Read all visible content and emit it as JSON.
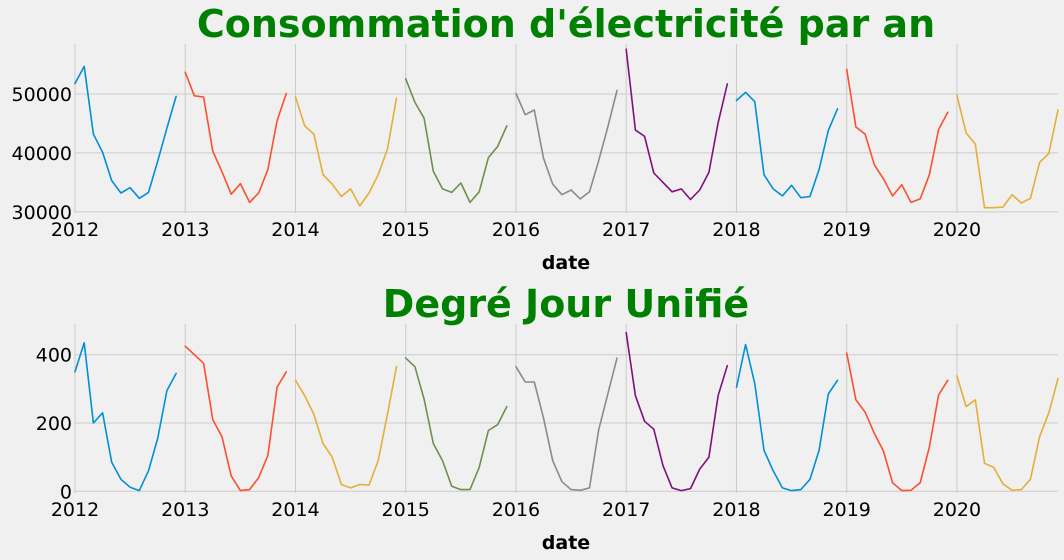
{
  "chart_data": [
    {
      "type": "line",
      "title": "Consommation d'électricité par an",
      "xlabel": "date",
      "ylabel": "",
      "x_ticks": [
        "2012",
        "2013",
        "2014",
        "2015",
        "2016",
        "2017",
        "2018",
        "2019",
        "2020"
      ],
      "y_ticks": [
        30000,
        40000,
        50000
      ],
      "ylim": [
        29800,
        58500
      ],
      "x_range": [
        "2012-01",
        "2020-12"
      ],
      "grid": true,
      "colors": [
        "#008fd5",
        "#fc4f30",
        "#e5ae38",
        "#6d904f",
        "#8b8b8b",
        "#810f7c"
      ],
      "series": [
        {
          "year": 2012,
          "color": "#008fd5",
          "values": [
            51800,
            54700,
            43200,
            40100,
            35300,
            33200,
            34100,
            32300,
            33300,
            38600,
            44200,
            49600
          ]
        },
        {
          "year": 2013,
          "color": "#fc4f30",
          "values": [
            53700,
            49700,
            49500,
            40300,
            36800,
            33000,
            34800,
            31600,
            33200,
            37200,
            45500,
            50100
          ]
        },
        {
          "year": 2014,
          "color": "#e5ae38",
          "values": [
            49500,
            44600,
            43200,
            36300,
            34700,
            32600,
            33900,
            31000,
            33200,
            36300,
            40600,
            49300
          ]
        },
        {
          "year": 2015,
          "color": "#6d904f",
          "values": [
            52600,
            48600,
            45900,
            36900,
            33900,
            33300,
            34900,
            31600,
            33400,
            39200,
            41100,
            44600
          ]
        },
        {
          "year": 2016,
          "color": "#8b8b8b",
          "values": [
            50100,
            46500,
            47300,
            39100,
            34700,
            32900,
            33700,
            32200,
            33400,
            38700,
            44400,
            50600
          ]
        },
        {
          "year": 2017,
          "color": "#810f7c",
          "values": [
            57600,
            43900,
            42800,
            36600,
            35000,
            33400,
            33900,
            32100,
            33700,
            36700,
            45100,
            51700
          ]
        },
        {
          "year": 2018,
          "color": "#008fd5",
          "values": [
            48900,
            50300,
            48700,
            36300,
            33900,
            32700,
            34500,
            32400,
            32600,
            37200,
            43800,
            47500
          ]
        },
        {
          "year": 2019,
          "color": "#fc4f30",
          "values": [
            54200,
            44400,
            43200,
            38000,
            35600,
            32700,
            34600,
            31600,
            32200,
            36300,
            44000,
            46900
          ]
        },
        {
          "year": 2020,
          "color": "#e5ae38",
          "values": [
            49800,
            43400,
            41500,
            30700,
            30700,
            30800,
            32900,
            31500,
            32300,
            38400,
            39900,
            47300
          ]
        }
      ]
    },
    {
      "type": "line",
      "title": "Degré Jour Unifié",
      "xlabel": "date",
      "ylabel": "",
      "x_ticks": [
        "2012",
        "2013",
        "2014",
        "2015",
        "2016",
        "2017",
        "2018",
        "2019",
        "2020"
      ],
      "y_ticks": [
        0,
        200,
        400
      ],
      "ylim": [
        -5,
        490
      ],
      "x_range": [
        "2012-01",
        "2020-12"
      ],
      "grid": true,
      "colors": [
        "#008fd5",
        "#fc4f30",
        "#e5ae38",
        "#6d904f",
        "#8b8b8b",
        "#810f7c"
      ],
      "series": [
        {
          "year": 2012,
          "color": "#008fd5",
          "values": [
            350,
            435,
            200,
            230,
            85,
            35,
            12,
            2,
            60,
            155,
            295,
            345
          ]
        },
        {
          "year": 2013,
          "color": "#fc4f30",
          "values": [
            425,
            400,
            375,
            210,
            160,
            45,
            2,
            5,
            40,
            105,
            305,
            350
          ]
        },
        {
          "year": 2014,
          "color": "#e5ae38",
          "values": [
            325,
            280,
            225,
            140,
            100,
            20,
            10,
            20,
            18,
            90,
            225,
            365
          ]
        },
        {
          "year": 2015,
          "color": "#6d904f",
          "values": [
            390,
            365,
            270,
            140,
            90,
            15,
            5,
            5,
            70,
            178,
            195,
            248
          ]
        },
        {
          "year": 2016,
          "color": "#8b8b8b",
          "values": [
            365,
            320,
            320,
            215,
            90,
            28,
            5,
            3,
            10,
            180,
            285,
            390
          ]
        },
        {
          "year": 2017,
          "color": "#810f7c",
          "values": [
            465,
            280,
            205,
            182,
            75,
            10,
            2,
            8,
            65,
            100,
            280,
            368
          ]
        },
        {
          "year": 2018,
          "color": "#008fd5",
          "values": [
            305,
            430,
            315,
            120,
            60,
            10,
            2,
            5,
            35,
            120,
            285,
            325
          ]
        },
        {
          "year": 2019,
          "color": "#fc4f30",
          "values": [
            405,
            268,
            232,
            170,
            118,
            25,
            2,
            3,
            25,
            130,
            282,
            325
          ]
        },
        {
          "year": 2020,
          "color": "#e5ae38",
          "values": [
            338,
            248,
            268,
            82,
            70,
            22,
            3,
            5,
            35,
            160,
            230,
            330
          ]
        }
      ]
    }
  ]
}
